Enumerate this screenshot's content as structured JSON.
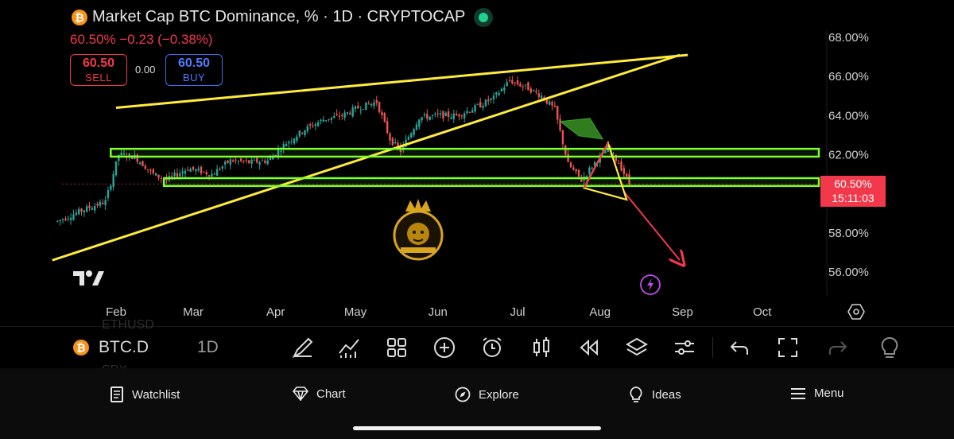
{
  "header": {
    "title": "Market Cap BTC Dominance, % · 1D · CRYPTOCAP",
    "coin_glyph": "₿",
    "change": "60.50% −0.23 (−0.38%)",
    "live_icon": "live-dot-icon",
    "colors": {
      "down": "#f2384a",
      "buy": "#4d7cff",
      "live": "#1fcf8f"
    }
  },
  "trade": {
    "sell_value": "60.50",
    "sell_label": "SELL",
    "spread": "0.00",
    "buy_value": "60.50",
    "buy_label": "BUY"
  },
  "price_label": {
    "value": "60.50%",
    "countdown": "15:11:03"
  },
  "chart_data": {
    "type": "candlestick",
    "title": "Market Cap BTC Dominance, %",
    "y_ticks": [
      "68.00%",
      "66.00%",
      "64.00%",
      "62.00%",
      "58.00%",
      "56.00%"
    ],
    "ylim": [
      55,
      68.6
    ],
    "x_ticks": [
      "Feb",
      "Mar",
      "Apr",
      "May",
      "Jun",
      "Jul",
      "Aug",
      "Sep",
      "Oct"
    ],
    "last_price": 60.5,
    "approximate_close_path": [
      [
        "Jan 10",
        58.6
      ],
      [
        "Jan 20",
        59.2
      ],
      [
        "Jan 28",
        59.6
      ],
      [
        "Feb 2",
        62.0
      ],
      [
        "Feb 8",
        61.9
      ],
      [
        "Feb 15",
        61.0
      ],
      [
        "Feb 20",
        60.7
      ],
      [
        "Feb 28",
        61.3
      ],
      [
        "Mar 8",
        61.0
      ],
      [
        "Mar 15",
        61.7
      ],
      [
        "Mar 22",
        61.6
      ],
      [
        "Mar 29",
        61.7
      ],
      [
        "Apr 5",
        62.6
      ],
      [
        "Apr 12",
        63.3
      ],
      [
        "Apr 19",
        63.8
      ],
      [
        "Apr 26",
        64.0
      ],
      [
        "May 2",
        64.4
      ],
      [
        "May 9",
        64.7
      ],
      [
        "May 14",
        62.8
      ],
      [
        "May 18",
        62.2
      ],
      [
        "May 25",
        63.9
      ],
      [
        "Jun 1",
        64.0
      ],
      [
        "Jun 8",
        64.0
      ],
      [
        "Jun 15",
        64.4
      ],
      [
        "Jun 22",
        64.9
      ],
      [
        "Jun 28",
        65.8
      ],
      [
        "Jul 5",
        65.4
      ],
      [
        "Jul 10",
        65.0
      ],
      [
        "Jul 15",
        64.3
      ],
      [
        "Jul 20",
        61.5
      ],
      [
        "Jul 25",
        60.7
      ],
      [
        "Jul 30",
        61.6
      ],
      [
        "Aug 4",
        62.3
      ],
      [
        "Aug 8",
        61.6
      ],
      [
        "Aug 12",
        60.5
      ]
    ],
    "annotations": [
      {
        "kind": "rising-wedge-upper",
        "from": [
          "Feb 1",
          64.4
        ],
        "to": [
          "Sep 3",
          67.1
        ],
        "color": "#ffeb3b"
      },
      {
        "kind": "rising-wedge-lower",
        "from": [
          "Jan 8",
          56.6
        ],
        "to": [
          "Aug 31",
          67.1
        ],
        "color": "#ffeb3b"
      },
      {
        "kind": "support-zone",
        "from": [
          "Jan 30",
          62.3
        ],
        "to": [
          "Oct 29",
          61.9
        ],
        "color": "#7cff2b"
      },
      {
        "kind": "support-zone",
        "from": [
          "Feb 19",
          60.8
        ],
        "to": [
          "Oct 29",
          60.4
        ],
        "color": "#7cff2b"
      },
      {
        "kind": "arrow",
        "from": [
          "Jul 17",
          63.7
        ],
        "to": [
          "Aug 2",
          62.8
        ],
        "color": "#2f7d1e"
      },
      {
        "kind": "arrow",
        "from": [
          "Aug 10",
          60.1
        ],
        "to": [
          "Aug 31",
          56.6
        ],
        "color": "#f2384a"
      },
      {
        "kind": "triangle",
        "points": [
          [
            "Jul 26",
            60.3
          ],
          [
            "Aug 4",
            62.6
          ],
          [
            "Aug 11",
            59.7
          ]
        ],
        "color": "#ffeb3b"
      }
    ],
    "logo_icon": "lion-crown-watermark-icon",
    "flash_icon": "lightning-icon"
  },
  "toolbar": {
    "symbol": "BTC.D",
    "timeframe": "1D",
    "icons": [
      "draw-icon",
      "indicators-icon",
      "layout-grid-icon",
      "add-icon",
      "alert-clock-icon",
      "candle-type-icon",
      "replay-icon",
      "layers-icon",
      "settings-sliders-icon",
      "undo-icon",
      "fullscreen-icon",
      "redo-icon",
      "idea-bulb-icon"
    ],
    "ghost_above": "ETHUSD",
    "ghost_below": "SPX"
  },
  "nav": {
    "items": [
      {
        "label": "Watchlist",
        "icon": "watchlist-icon"
      },
      {
        "label": "Chart",
        "icon": "chart-gem-icon"
      },
      {
        "label": "Explore",
        "icon": "compass-icon"
      },
      {
        "label": "Ideas",
        "icon": "bulb-icon"
      },
      {
        "label": "Menu",
        "icon": "hamburger-icon"
      }
    ]
  }
}
